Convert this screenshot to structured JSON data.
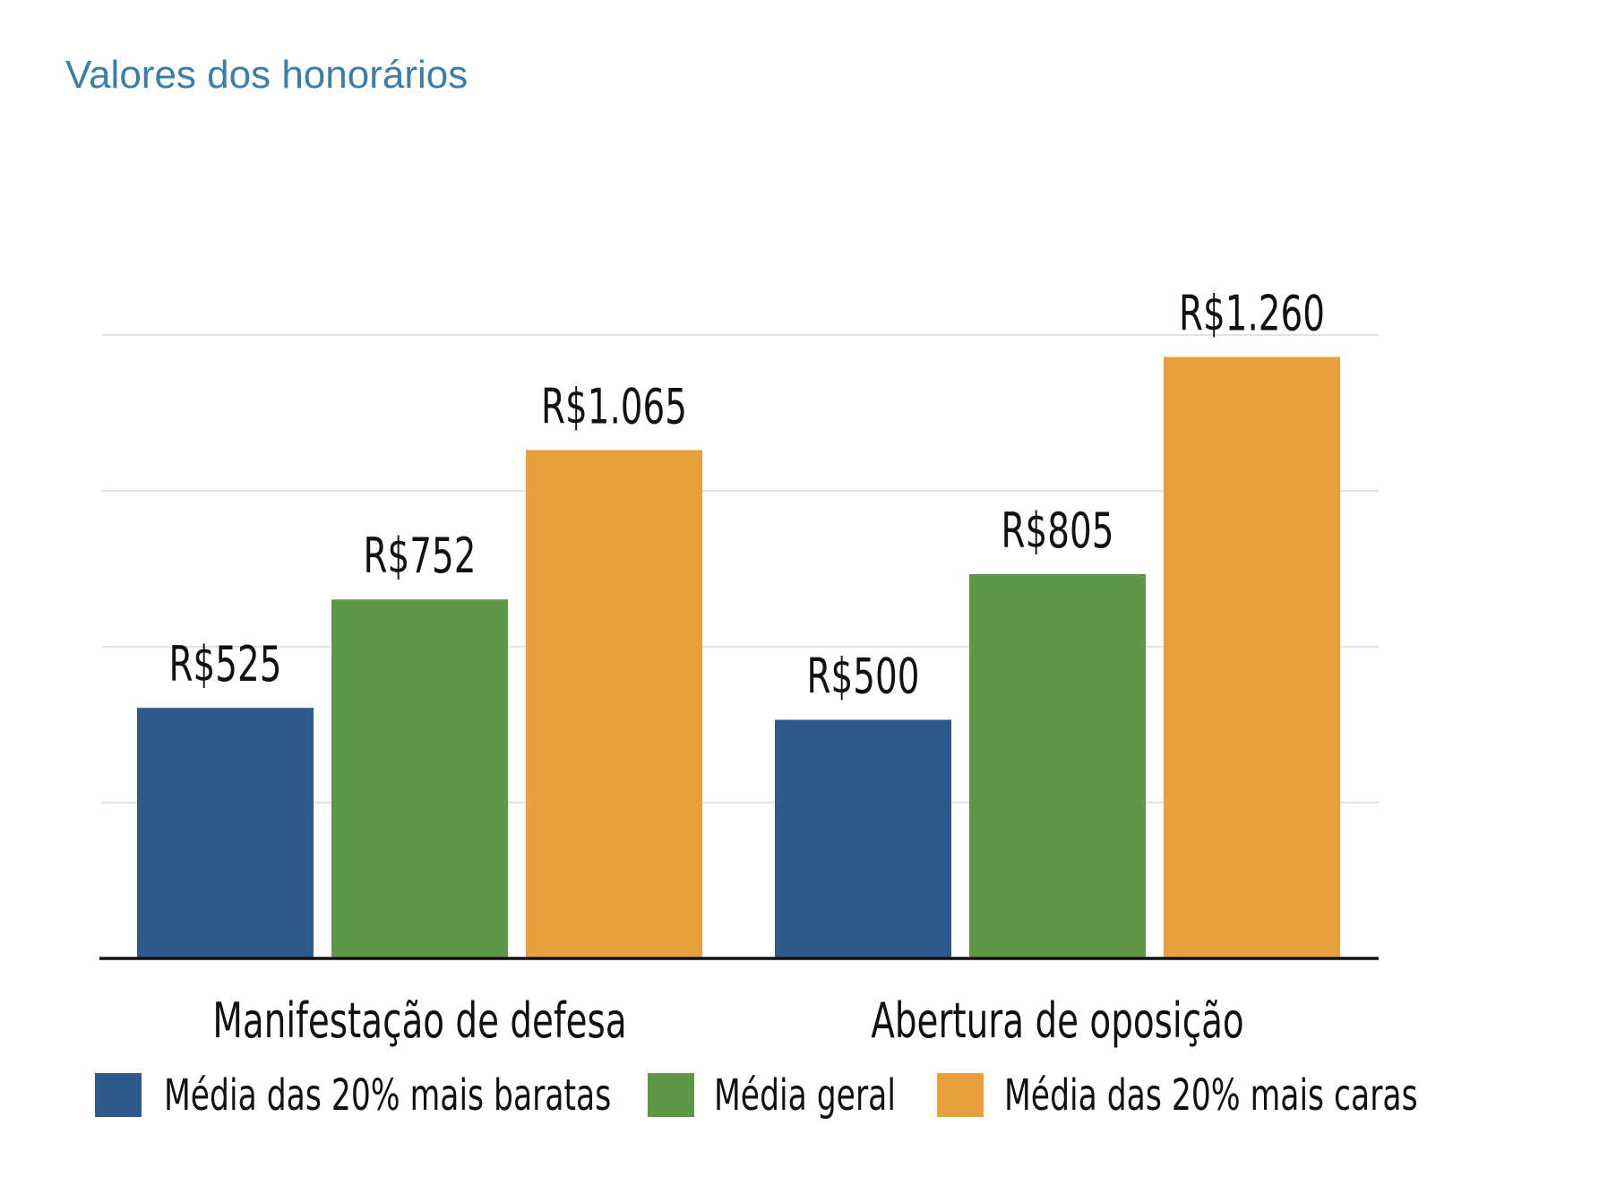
{
  "chart_data": {
    "type": "bar",
    "title": "Valores dos honorários",
    "xlabel": "",
    "ylabel": "",
    "categories": [
      "Manifestação de defesa",
      "Abertura de oposição"
    ],
    "series": [
      {
        "name": "Média das 20% mais baratas",
        "color": "#2e5a8b",
        "values": [
          525,
          500
        ],
        "labels": [
          "R$525",
          "R$500"
        ]
      },
      {
        "name": "Média geral",
        "color": "#5e9748",
        "values": [
          752,
          805
        ],
        "labels": [
          "R$752",
          "R$805"
        ]
      },
      {
        "name": "Média das 20% mais caras",
        "color": "#e8a03c",
        "values": [
          1065,
          1260
        ],
        "labels": [
          "R$1.065",
          "R$1.260"
        ]
      }
    ],
    "ylim": [
      0,
      1306
    ],
    "grid": true,
    "y_tick_labels_shown": false,
    "legend_placement": "bottom"
  }
}
